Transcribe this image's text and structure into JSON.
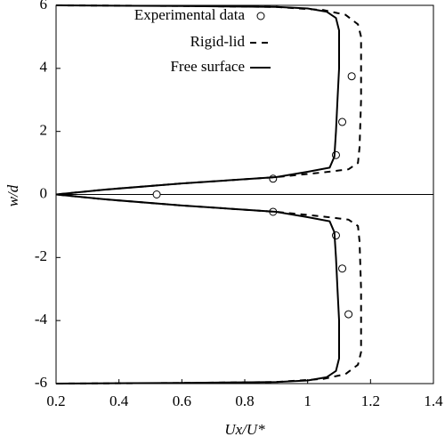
{
  "chart_data": {
    "type": "line",
    "xlabel": "Ux/U*",
    "ylabel": "w/d",
    "xlim": [
      0.2,
      1.4
    ],
    "xticks": [
      0.2,
      0.4,
      0.6,
      0.8,
      1,
      1.2,
      1.4
    ],
    "ylim": [
      -6,
      6
    ],
    "yticks": [
      -6,
      -4,
      -2,
      0,
      2,
      4,
      6
    ],
    "zero_line": true,
    "legend": "upper left",
    "series": [
      {
        "name": "Experimental data",
        "kind": "scatter",
        "color": "#000000",
        "x": [
          0.52,
          0.89,
          1.09,
          1.11,
          1.14,
          0.89,
          1.09,
          1.11,
          1.13
        ],
        "values": [
          0,
          0.5,
          1.25,
          2.3,
          3.75,
          -0.55,
          -1.3,
          -2.35,
          -3.8
        ]
      },
      {
        "name": "Rigid-lid",
        "kind": "dashed",
        "color": "#000000",
        "x": [
          0.2,
          0.6,
          0.9,
          1.05,
          1.12,
          1.16,
          1.17,
          1.17,
          1.165,
          1.16,
          1.13,
          1.05,
          0.9,
          0.6,
          0.35,
          0.2,
          0.35,
          0.6,
          0.9,
          1.05,
          1.13,
          1.16,
          1.165,
          1.17,
          1.17,
          1.16,
          1.12,
          1.05,
          0.9,
          0.6,
          0.2
        ],
        "values": [
          6,
          5.98,
          5.95,
          5.85,
          5.7,
          5.4,
          5,
          3,
          1.5,
          1,
          0.8,
          0.7,
          0.55,
          0.35,
          0.15,
          0,
          -0.15,
          -0.35,
          -0.55,
          -0.7,
          -0.8,
          -1,
          -1.5,
          -3,
          -5,
          -5.4,
          -5.7,
          -5.85,
          -5.95,
          -5.98,
          -6
        ]
      },
      {
        "name": "Free surface",
        "kind": "solid",
        "color": "#000000",
        "x": [
          0.2,
          0.6,
          0.9,
          1.0,
          1.06,
          1.09,
          1.1,
          1.1,
          1.095,
          1.09,
          1.085,
          1.07,
          1.0,
          0.9,
          0.6,
          0.35,
          0.2,
          0.35,
          0.6,
          0.9,
          1.0,
          1.07,
          1.085,
          1.09,
          1.095,
          1.1,
          1.1,
          1.09,
          1.06,
          1.0,
          0.9,
          0.6,
          0.2
        ],
        "values": [
          6,
          5.98,
          5.95,
          5.9,
          5.8,
          5.6,
          5.2,
          4,
          3,
          2,
          1.2,
          0.85,
          0.72,
          0.55,
          0.35,
          0.15,
          0,
          -0.15,
          -0.35,
          -0.55,
          -0.72,
          -0.85,
          -1.2,
          -2,
          -3,
          -4,
          -5.2,
          -5.6,
          -5.8,
          -5.9,
          -5.95,
          -5.98,
          -6
        ]
      }
    ]
  }
}
